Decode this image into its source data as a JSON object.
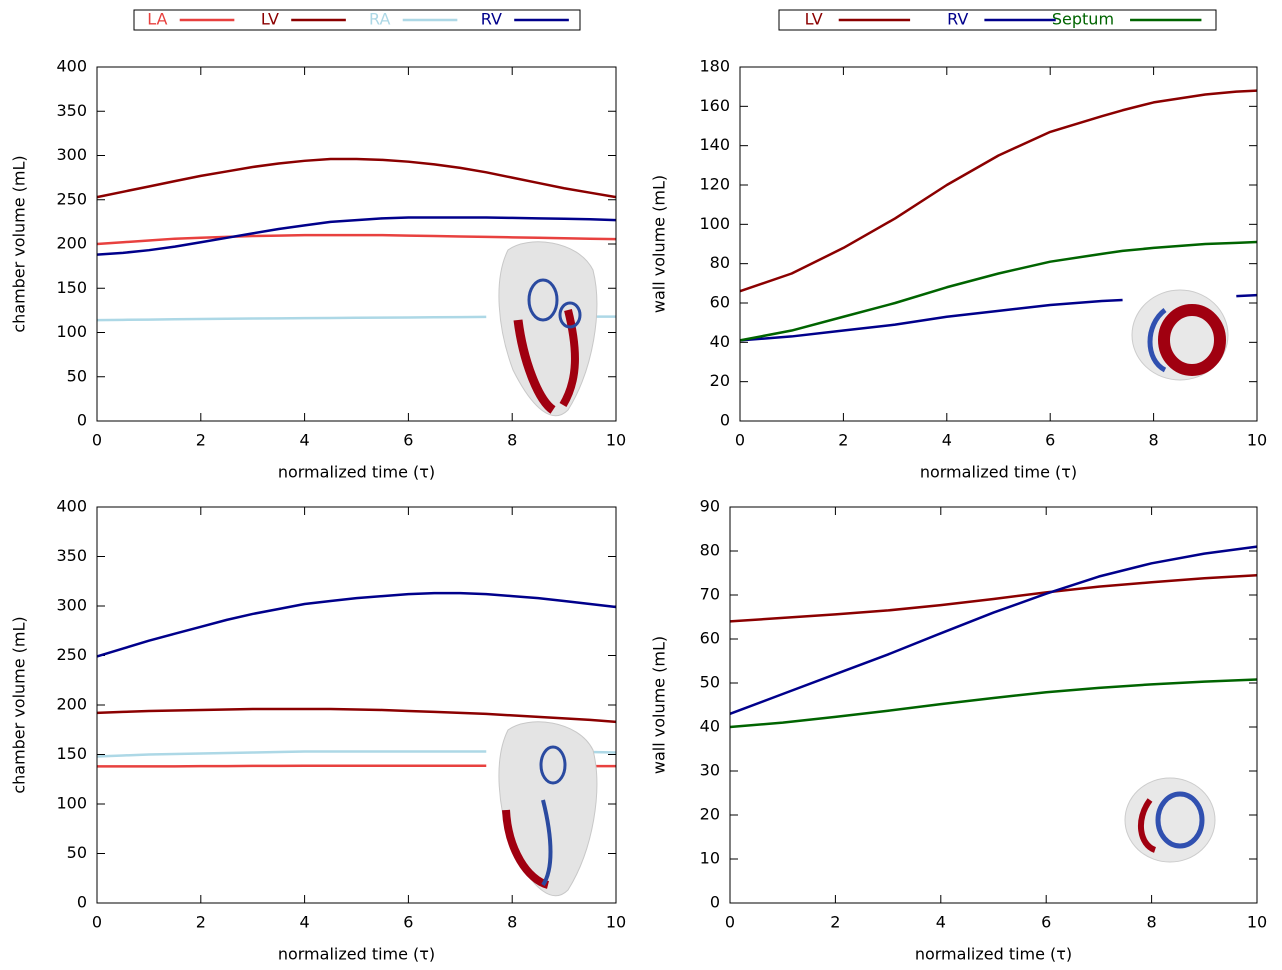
{
  "chart_data": [
    {
      "type": "line",
      "xlabel": "normalized time (τ)",
      "ylabel": "chamber volume (mL)",
      "legend": "top",
      "xlim": [
        0,
        10
      ],
      "xticks": [
        0,
        2,
        4,
        6,
        8,
        10
      ],
      "ylim": [
        0,
        400
      ],
      "yticks": [
        0,
        50,
        100,
        150,
        200,
        250,
        300,
        350,
        400
      ],
      "x": [
        0,
        0.5,
        1,
        1.5,
        2,
        2.5,
        3,
        3.5,
        4,
        4.5,
        5,
        5.5,
        6,
        6.5,
        7,
        7.5,
        8,
        8.5,
        9,
        9.5,
        10
      ],
      "series": [
        {
          "name": "LA",
          "color": "#e8413f",
          "values": [
            200,
            202,
            204,
            206,
            207,
            208,
            209,
            209.5,
            210,
            210,
            210,
            210,
            209.5,
            209,
            208.5,
            208,
            207.5,
            207,
            206.5,
            206,
            205.5
          ]
        },
        {
          "name": "LV",
          "color": "#8b0000",
          "values": [
            253,
            259,
            265,
            271,
            277,
            282,
            287,
            291,
            294,
            296,
            296,
            295,
            293,
            290,
            286,
            281,
            275,
            269,
            263,
            258,
            253
          ]
        },
        {
          "name": "RA",
          "color": "#add8e6",
          "values": [
            114,
            114.3,
            114.6,
            114.9,
            115.2,
            115.5,
            115.8,
            116,
            116.2,
            116.4,
            116.6,
            116.8,
            117,
            117.2,
            117.4,
            117.6,
            null,
            117.8,
            118,
            118,
            118
          ]
        },
        {
          "name": "RV",
          "color": "#00008b",
          "values": [
            188,
            190,
            193,
            197,
            202,
            207,
            212,
            217,
            221,
            225,
            227,
            229,
            230,
            230,
            230,
            230,
            229.5,
            229,
            228.5,
            228,
            227
          ]
        }
      ]
    },
    {
      "type": "line",
      "xlabel": "normalized time (τ)",
      "ylabel": "wall volume (mL)",
      "legend": "top",
      "xlim": [
        0,
        10
      ],
      "xticks": [
        0,
        2,
        4,
        6,
        8,
        10
      ],
      "ylim": [
        0,
        180
      ],
      "yticks": [
        0,
        20,
        40,
        60,
        80,
        100,
        120,
        140,
        160,
        180
      ],
      "x": [
        0,
        1,
        2,
        3,
        4,
        5,
        6,
        7,
        7.4,
        8,
        9,
        9.6,
        10
      ],
      "series": [
        {
          "name": "LV",
          "color": "#8b0000",
          "values": [
            66,
            75,
            88,
            103,
            120,
            135,
            147,
            155,
            158,
            162,
            166,
            167.5,
            168
          ]
        },
        {
          "name": "RV",
          "color": "#00008b",
          "values": [
            41,
            43,
            46,
            49,
            53,
            56,
            59,
            61,
            61.5,
            null,
            null,
            63.5,
            64
          ]
        },
        {
          "name": "Septum",
          "color": "#006400",
          "values": [
            41,
            46,
            53,
            60,
            68,
            75,
            81,
            85,
            86.5,
            88,
            90,
            90.6,
            91
          ]
        }
      ]
    },
    {
      "type": "line",
      "xlabel": "normalized time (τ)",
      "ylabel": "chamber volume (mL)",
      "xlim": [
        0,
        10
      ],
      "xticks": [
        0,
        2,
        4,
        6,
        8,
        10
      ],
      "ylim": [
        0,
        400
      ],
      "yticks": [
        0,
        50,
        100,
        150,
        200,
        250,
        300,
        350,
        400
      ],
      "x": [
        0,
        0.5,
        1,
        1.5,
        2,
        2.5,
        3,
        3.5,
        4,
        4.5,
        5,
        5.5,
        6,
        6.5,
        7,
        7.5,
        8,
        8.5,
        9,
        9.5,
        10
      ],
      "series": [
        {
          "color": "#e8413f",
          "values": [
            138,
            138,
            138,
            138,
            138.3,
            138.3,
            138.5,
            138.5,
            138.6,
            138.6,
            138.7,
            138.7,
            138.7,
            138.7,
            138.6,
            138.6,
            null,
            138.5,
            138.4,
            138.3,
            138.2
          ]
        },
        {
          "color": "#8b0000",
          "values": [
            192,
            193,
            194,
            194.5,
            195,
            195.5,
            196,
            196,
            196,
            196,
            195.5,
            195,
            194,
            193,
            192,
            191,
            189.5,
            188,
            186.5,
            185,
            183
          ]
        },
        {
          "color": "#add8e6",
          "values": [
            148,
            149,
            150,
            150.5,
            151,
            151.5,
            152,
            152.5,
            153,
            153,
            153,
            153,
            153,
            153,
            153,
            153,
            null,
            null,
            null,
            152.5,
            152
          ]
        },
        {
          "color": "#00008b",
          "values": [
            249,
            257,
            265,
            272,
            279,
            286,
            292,
            297,
            302,
            305,
            308,
            310,
            312,
            313,
            313,
            312,
            310,
            308,
            305,
            302,
            299
          ]
        }
      ]
    },
    {
      "type": "line",
      "xlabel": "normalized time (τ)",
      "ylabel": "wall volume (mL)",
      "xlim": [
        0,
        10
      ],
      "xticks": [
        0,
        2,
        4,
        6,
        8,
        10
      ],
      "ylim": [
        0,
        90
      ],
      "yticks": [
        0,
        10,
        20,
        30,
        40,
        50,
        60,
        70,
        80,
        90
      ],
      "x": [
        0,
        1,
        2,
        3,
        4,
        5,
        6,
        7,
        8,
        9,
        10
      ],
      "series": [
        {
          "color": "#8b0000",
          "values": [
            64,
            64.8,
            65.6,
            66.5,
            67.7,
            69.1,
            70.6,
            71.9,
            72.9,
            73.8,
            74.5
          ]
        },
        {
          "color": "#00008b",
          "values": [
            43,
            47.5,
            52,
            56.5,
            61.3,
            66,
            70.3,
            74.2,
            77.2,
            79.4,
            81
          ]
        },
        {
          "color": "#006400",
          "values": [
            40,
            41,
            42.3,
            43.7,
            45.2,
            46.6,
            47.9,
            48.9,
            49.7,
            50.3,
            50.8
          ]
        }
      ]
    }
  ]
}
